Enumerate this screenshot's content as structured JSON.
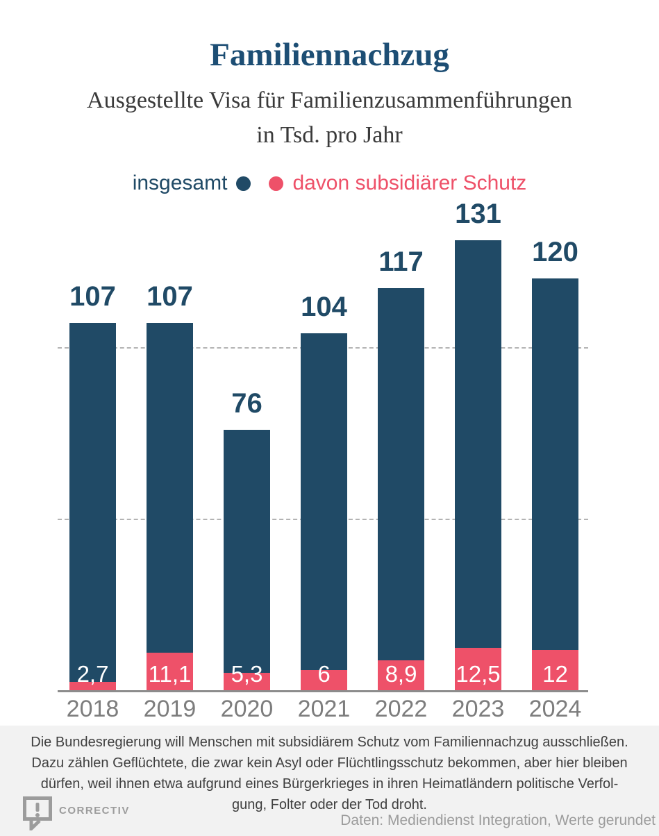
{
  "header": {
    "title": "Familiennachzug",
    "subtitle_line1": "Ausgestellte Visa für Familienzusammenführungen",
    "subtitle_line2": "in Tsd. pro Jahr"
  },
  "legend": {
    "total_label": "insgesamt",
    "subsidiary_label": "davon subsidiärer Schutz"
  },
  "colors": {
    "navy": "#204a66",
    "pink": "#ee5169",
    "title": "#1d4e74",
    "subtitle_text": "#3a3a3a",
    "year_label": "#7d7d7d",
    "gridline": "#b3b3b3",
    "axis_line": "#8c8c8c",
    "footer_bg": "#f2f2f2",
    "footer_text": "#3f3f3f",
    "muted_gray": "#9c9c9c",
    "bar_inner_label": "#ffffff"
  },
  "chart_data": {
    "type": "bar",
    "title": "Familiennachzug",
    "subtitle": "Ausgestellte Visa für Familienzusammenführungen in Tsd. pro Jahr",
    "categories": [
      "2018",
      "2019",
      "2020",
      "2021",
      "2022",
      "2023",
      "2024"
    ],
    "series": [
      {
        "name": "insgesamt",
        "values": [
          107,
          107,
          76,
          104,
          117,
          131,
          120
        ],
        "labels": [
          "107",
          "107",
          "76",
          "104",
          "117",
          "131",
          "120"
        ],
        "color": "#204a66"
      },
      {
        "name": "davon subsidiärer Schutz",
        "values": [
          2.7,
          11.1,
          5.3,
          6,
          8.9,
          12.5,
          12
        ],
        "labels": [
          "2,7",
          "11,1",
          "5,3",
          "6",
          "8,9",
          "12,5",
          "12"
        ],
        "color": "#ee5169"
      }
    ],
    "ylim": [
      0,
      140
    ],
    "gridlines": [
      50,
      100
    ],
    "grid_style": "horizontal dashed",
    "legend_position": "top",
    "value_unit": "Tsd."
  },
  "footer": {
    "note": "Die Bundesregierung will Menschen mit subsidiärem Schutz vom Familiennachzug ausschließen.\nDazu zählen Geflüchtete, die zwar kein Asyl oder Flüchtlingsschutz bekommen, aber hier bleiben\ndürfen, weil ihnen etwa aufgrund eines Bürgerkrieges in ihren Heimatländern politische Verfol-\ngung, Folter oder der Tod droht.",
    "logo_text": "CORRECTIV",
    "logo_glyph": "!",
    "source": "Daten: Mediendienst Integration, Werte gerundet"
  }
}
